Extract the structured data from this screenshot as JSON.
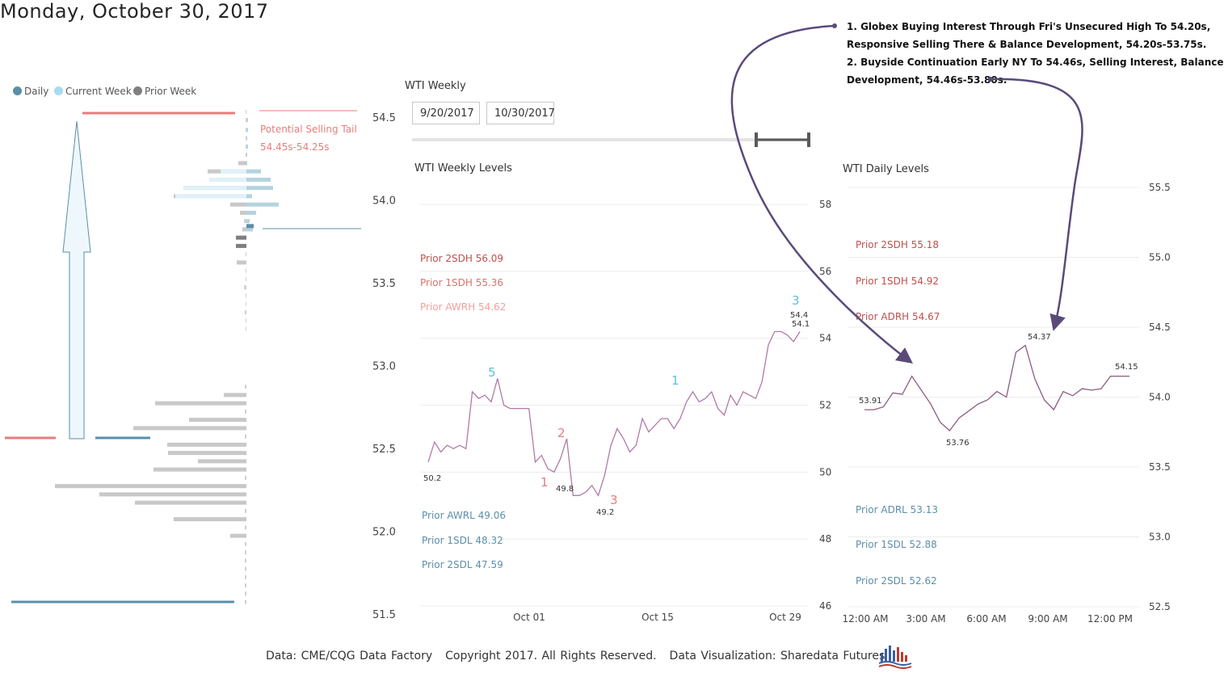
{
  "title": "Monday, October 30, 2017",
  "legend": [
    {
      "label": "Daily",
      "color": "#5b8fa8"
    },
    {
      "label": "Current Week",
      "color": "#a7dcef"
    },
    {
      "label": "Prior Week",
      "color": "#7f7f7f"
    }
  ],
  "slicer": {
    "label": "WTI Weekly",
    "start_date": "9/20/2017",
    "end_date": "10/30/2017"
  },
  "annotations": {
    "line1": "1. Globex Buying Interest Through Fri's Unsecured High To 54.20s,",
    "line2": "Responsive Selling There & Balance Development, 54.20s-53.75s.",
    "line3": "2. Buyside Continuation Early NY To 54.46s, Selling Interest, Balance",
    "line4": "Development, 54.46s-53.80s."
  },
  "footer": {
    "source": "Data: CME/CQG Data Factory",
    "copyright": "Copyright 2017. All Rights Reserved.",
    "credit": "Data Visualization: Sharedata Futures"
  },
  "chart_data": [
    {
      "type": "bar",
      "name": "volume-profile",
      "orientation": "horizontal",
      "ylim": [
        51.5,
        54.5
      ],
      "yticks": [
        54.5,
        54.0,
        53.5,
        53.0,
        52.5,
        52.0,
        51.5
      ],
      "yticklabels": [
        "54.5",
        "54.0",
        "53.5",
        "53.0",
        "52.5",
        "52.0",
        "51.5"
      ],
      "callout_text": "Potential Selling Tail",
      "callout_range": "54.45s-54.25s",
      "reference_levels": [
        {
          "name": "selling-tail-top",
          "price": 54.53,
          "color": "#e87d7d"
        },
        {
          "name": "daily-marker",
          "price": 53.82,
          "color": "#5b8fa8"
        },
        {
          "name": "prior-week-low",
          "price": 51.57,
          "color": "#5b8fa8"
        },
        {
          "name": "prior-week-mid-red",
          "price": 52.57,
          "color": "#e87d7d"
        },
        {
          "name": "prior-week-mid-blue",
          "price": 52.57,
          "color": "#5b8fa8"
        }
      ],
      "series": [
        {
          "name": "Current Week (right)",
          "color": "#b5d3df",
          "prices": [
            54.48,
            54.42,
            54.37,
            54.32,
            54.27,
            54.22,
            54.17,
            54.12,
            54.07,
            54.02,
            53.97,
            53.92,
            53.87,
            53.82
          ],
          "values": [
            2,
            2,
            1,
            2,
            1,
            1,
            18,
            30,
            33,
            7,
            40,
            12,
            4,
            8
          ]
        },
        {
          "name": "Prior Week (left)",
          "color": "#c8c8c8",
          "prices": [
            54.53,
            54.48,
            54.42,
            54.37,
            54.32,
            54.27,
            54.22,
            54.17,
            54.12,
            54.07,
            54.02,
            53.97,
            53.92,
            53.87,
            53.82,
            53.77,
            53.72,
            53.67,
            53.62,
            53.57,
            53.52,
            53.47,
            53.42,
            53.37,
            53.32,
            53.27,
            53.22,
            52.87,
            52.82,
            52.77,
            52.72,
            52.67,
            52.62,
            52.57,
            52.52,
            52.47,
            52.42,
            52.37,
            52.32,
            52.27,
            52.22,
            52.17,
            52.12,
            52.07,
            52.02,
            51.97,
            51.92,
            51.87,
            51.82,
            51.77,
            51.72,
            51.67,
            51.62,
            51.57
          ],
          "values": [
            1,
            1,
            1,
            1,
            1,
            1,
            10,
            48,
            36,
            78,
            90,
            20,
            8,
            3,
            5,
            8,
            1,
            1,
            12,
            1,
            1,
            3,
            1,
            1,
            2,
            1,
            1,
            2,
            28,
            113,
            2,
            71,
            140,
            2,
            98,
            97,
            60,
            115,
            2,
            237,
            182,
            138,
            2,
            90,
            2,
            20,
            2,
            2,
            2,
            2,
            2,
            2,
            2,
            2
          ]
        },
        {
          "name": "Daily (dark)",
          "color": "#7f7f7f",
          "prices": [
            53.77,
            53.72
          ],
          "values": [
            13,
            13
          ]
        }
      ]
    },
    {
      "type": "line",
      "name": "WTI Weekly Levels",
      "title": "WTI Weekly Levels",
      "ylim": [
        46,
        58.5
      ],
      "yticks": [
        46,
        48,
        50,
        52,
        54,
        56,
        58
      ],
      "xticks": [
        "Oct 01",
        "Oct 15",
        "Oct 29"
      ],
      "levels_high": [
        {
          "label": "Prior 2SDH 56.09",
          "color": "#c0504d"
        },
        {
          "label": "Prior 1SDH 55.36",
          "color": "#d9716e"
        },
        {
          "label": "Prior AWRH 54.62",
          "color": "#f0a09c"
        }
      ],
      "levels_low": [
        {
          "label": "Prior AWRL 49.06",
          "color": "#5b8fa8"
        },
        {
          "label": "Prior 1SDL 48.32",
          "color": "#5b8fa8"
        },
        {
          "label": "Prior 2SDL 47.59",
          "color": "#5b8fa8"
        }
      ],
      "point_labels": [
        "50.2",
        "49.8",
        "49.2",
        "54.4",
        "54.1"
      ],
      "wave_labels": [
        {
          "text": "5",
          "color": "#5bc0de"
        },
        {
          "text": "1",
          "color": "#e87d7d"
        },
        {
          "text": "2",
          "color": "#e87d7d"
        },
        {
          "text": "3",
          "color": "#e87d7d"
        },
        {
          "text": "1",
          "color": "#5bc0de"
        },
        {
          "text": "3",
          "color": "#5bc0de"
        }
      ],
      "series": [
        {
          "name": "WTI",
          "color": "#b07aa8",
          "x": [
            0,
            1,
            2,
            3,
            4,
            5,
            6,
            7,
            8,
            9,
            10,
            11,
            12,
            13,
            14,
            15,
            16,
            17,
            18,
            19,
            20,
            21,
            22,
            23,
            24,
            25,
            26,
            27,
            28,
            29,
            30,
            31,
            32,
            33,
            34,
            35,
            36,
            37,
            38,
            39,
            40,
            41,
            42,
            43,
            44,
            45,
            46,
            47,
            48,
            49,
            50,
            51,
            52,
            53,
            54,
            55,
            56,
            57,
            58,
            59
          ],
          "values": [
            50.3,
            50.9,
            50.6,
            50.8,
            50.7,
            50.8,
            50.7,
            52.4,
            52.2,
            52.3,
            52.1,
            52.8,
            52.0,
            51.9,
            51.9,
            51.9,
            51.9,
            50.3,
            50.5,
            50.1,
            50.0,
            50.4,
            51.0,
            49.3,
            49.3,
            49.4,
            49.6,
            49.3,
            49.9,
            50.8,
            51.3,
            51.0,
            50.6,
            50.8,
            51.6,
            51.2,
            51.4,
            51.6,
            51.6,
            51.3,
            51.6,
            52.1,
            52.4,
            52.1,
            52.2,
            52.4,
            51.9,
            51.7,
            52.3,
            52.0,
            52.4,
            52.3,
            52.2,
            52.7,
            53.8,
            54.2,
            54.2,
            54.1,
            53.9,
            54.2
          ]
        }
      ]
    },
    {
      "type": "line",
      "name": "WTI Daily Levels",
      "title": "WTI Daily Levels",
      "ylim": [
        52.5,
        55.5
      ],
      "yticks": [
        52.5,
        53.0,
        53.5,
        54.0,
        54.5,
        55.0,
        55.5
      ],
      "yticklabels": [
        "52.5",
        "53.0",
        "53.5",
        "54.0",
        "54.5",
        "55.0",
        "55.5"
      ],
      "xticks": [
        "12:00 AM",
        "3:00 AM",
        "6:00 AM",
        "9:00 AM",
        "12:00 PM"
      ],
      "levels_high": [
        {
          "label": "Prior 2SDH 55.18",
          "color": "#c0504d"
        },
        {
          "label": "Prior 1SDH 54.92",
          "color": "#c0504d"
        },
        {
          "label": "Prior ADRH 54.67",
          "color": "#c0504d"
        }
      ],
      "levels_low": [
        {
          "label": "Prior ADRL 53.13",
          "color": "#5b8fa8"
        },
        {
          "label": "Prior 1SDL 52.88",
          "color": "#5b8fa8"
        },
        {
          "label": "Prior 2SDL 52.62",
          "color": "#5b8fa8"
        }
      ],
      "point_labels": [
        "53.91",
        "53.76",
        "54.37",
        "54.15"
      ],
      "series": [
        {
          "name": "WTI",
          "color": "#8c5c80",
          "x": [
            0,
            0.5,
            1,
            1.5,
            2,
            2.5,
            3,
            3.5,
            4,
            4.5,
            5,
            5.5,
            6,
            6.5,
            7,
            7.5,
            8,
            8.5,
            9,
            9.5,
            10,
            10.5,
            11,
            11.5,
            12,
            12.5,
            13,
            13.5,
            14
          ],
          "values": [
            53.91,
            53.91,
            53.93,
            54.03,
            54.02,
            54.15,
            54.05,
            53.95,
            53.82,
            53.76,
            53.85,
            53.9,
            53.95,
            53.98,
            54.04,
            54.0,
            54.32,
            54.37,
            54.13,
            53.98,
            53.91,
            54.04,
            54.01,
            54.06,
            54.05,
            54.06,
            54.15,
            54.15,
            54.15
          ]
        }
      ]
    }
  ]
}
